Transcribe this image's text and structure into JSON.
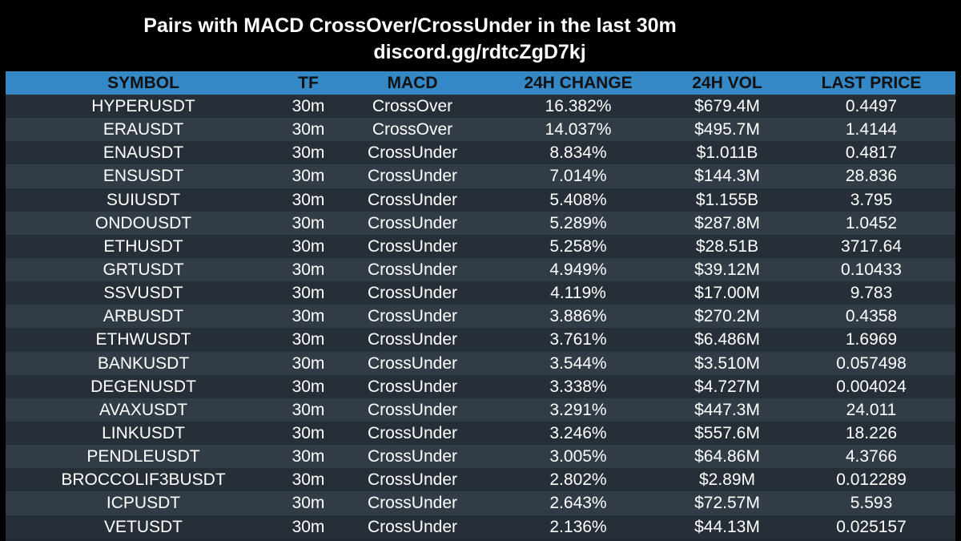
{
  "header": {
    "title": "Pairs with MACD CrossOver/CrossUnder in the last 30m",
    "subtitle": "discord.gg/rdtcZgD7kj"
  },
  "colors": {
    "background": "#000000",
    "header_bg": "#3488c6",
    "row_odd": "#262f37",
    "row_even": "#323c46",
    "text": "#ffffff"
  },
  "table": {
    "columns": [
      "SYMBOL",
      "TF",
      "MACD",
      "24H CHANGE",
      "24H VOL",
      "LAST PRICE"
    ],
    "rows": [
      [
        "HYPERUSDT",
        "30m",
        "CrossOver",
        "16.382%",
        "$679.4M",
        "0.4497"
      ],
      [
        "ERAUSDT",
        "30m",
        "CrossOver",
        "14.037%",
        "$495.7M",
        "1.4144"
      ],
      [
        "ENAUSDT",
        "30m",
        "CrossUnder",
        "8.834%",
        "$1.011B",
        "0.4817"
      ],
      [
        "ENSUSDT",
        "30m",
        "CrossUnder",
        "7.014%",
        "$144.3M",
        "28.836"
      ],
      [
        "SUIUSDT",
        "30m",
        "CrossUnder",
        "5.408%",
        "$1.155B",
        "3.795"
      ],
      [
        "ONDOUSDT",
        "30m",
        "CrossUnder",
        "5.289%",
        "$287.8M",
        "1.0452"
      ],
      [
        "ETHUSDT",
        "30m",
        "CrossUnder",
        "5.258%",
        "$28.51B",
        "3717.64"
      ],
      [
        "GRTUSDT",
        "30m",
        "CrossUnder",
        "4.949%",
        "$39.12M",
        "0.10433"
      ],
      [
        "SSVUSDT",
        "30m",
        "CrossUnder",
        "4.119%",
        "$17.00M",
        "9.783"
      ],
      [
        "ARBUSDT",
        "30m",
        "CrossUnder",
        "3.886%",
        "$270.2M",
        "0.4358"
      ],
      [
        "ETHWUSDT",
        "30m",
        "CrossUnder",
        "3.761%",
        "$6.486M",
        "1.6969"
      ],
      [
        "BANKUSDT",
        "30m",
        "CrossUnder",
        "3.544%",
        "$3.510M",
        "0.057498"
      ],
      [
        "DEGENUSDT",
        "30m",
        "CrossUnder",
        "3.338%",
        "$4.727M",
        "0.004024"
      ],
      [
        "AVAXUSDT",
        "30m",
        "CrossUnder",
        "3.291%",
        "$447.3M",
        "24.011"
      ],
      [
        "LINKUSDT",
        "30m",
        "CrossUnder",
        "3.246%",
        "$557.6M",
        "18.226"
      ],
      [
        "PENDLEUSDT",
        "30m",
        "CrossUnder",
        "3.005%",
        "$64.86M",
        "4.3766"
      ],
      [
        "BROCCOLIF3BUSDT",
        "30m",
        "CrossUnder",
        "2.802%",
        "$2.89M",
        "0.012289"
      ],
      [
        "ICPUSDT",
        "30m",
        "CrossUnder",
        "2.643%",
        "$72.57M",
        "5.593"
      ],
      [
        "VETUSDT",
        "30m",
        "CrossUnder",
        "2.136%",
        "$44.13M",
        "0.025157"
      ]
    ]
  }
}
